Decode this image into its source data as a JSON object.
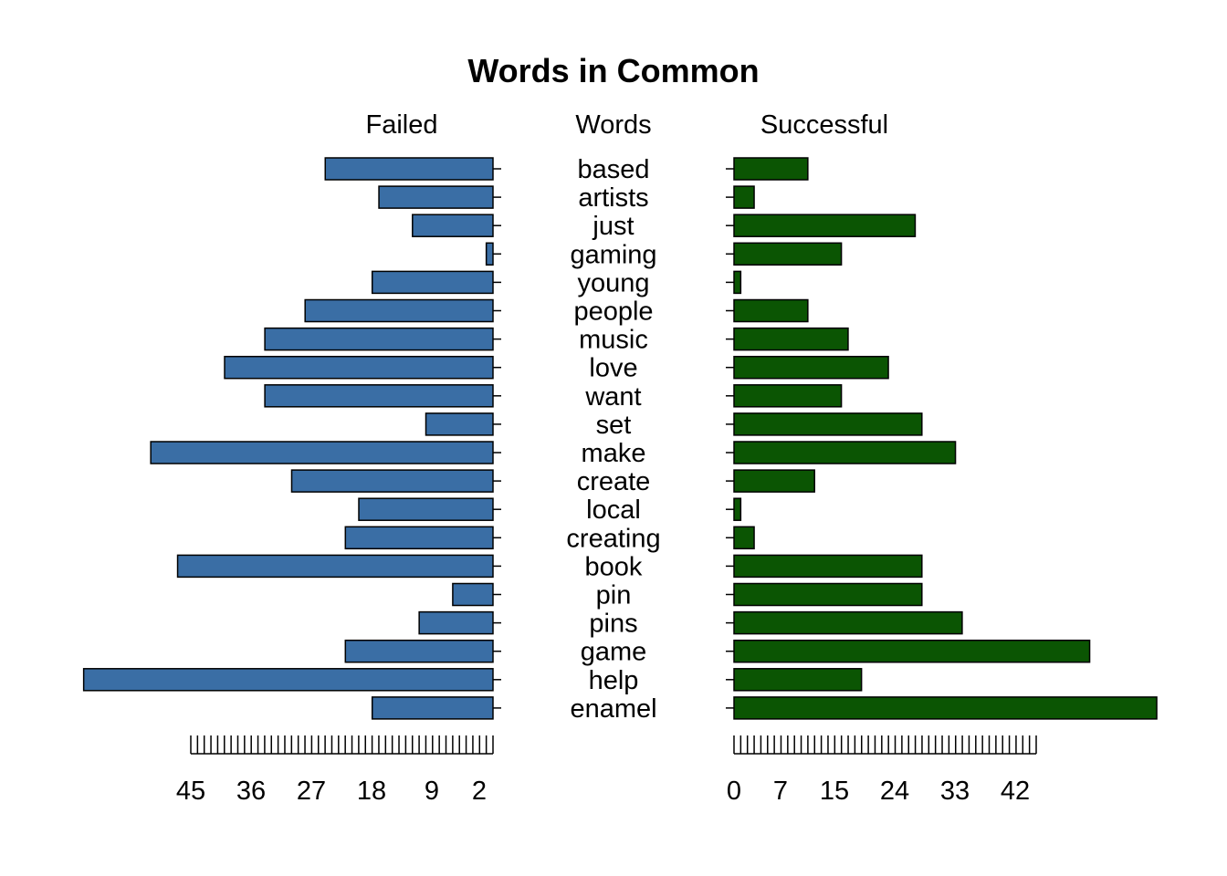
{
  "chart_data": {
    "type": "bar",
    "title": "Words in Common",
    "left_header": "Failed",
    "center_header": "Words",
    "right_header": "Successful",
    "categories": [
      "based",
      "artists",
      "just",
      "gaming",
      "young",
      "people",
      "music",
      "love",
      "want",
      "set",
      "make",
      "create",
      "local",
      "creating",
      "book",
      "pin",
      "pins",
      "game",
      "help",
      "enamel"
    ],
    "series": [
      {
        "name": "Failed",
        "color": "#3a6ea5",
        "values": [
          25,
          17,
          12,
          1,
          18,
          28,
          34,
          40,
          34,
          10,
          51,
          30,
          20,
          22,
          47,
          6,
          11,
          22,
          61,
          18
        ]
      },
      {
        "name": "Successful",
        "color": "#0b5503",
        "values": [
          11,
          3,
          27,
          16,
          1,
          11,
          17,
          23,
          16,
          28,
          33,
          12,
          1,
          3,
          28,
          28,
          34,
          53,
          19,
          63
        ]
      }
    ],
    "left_axis_ticks": [
      "45",
      "36",
      "27",
      "18",
      "9",
      "2"
    ],
    "right_axis_ticks": [
      "0",
      "7",
      "15",
      "24",
      "33",
      "42"
    ],
    "orientation": "horizontal",
    "grid": false,
    "legend": "none"
  }
}
